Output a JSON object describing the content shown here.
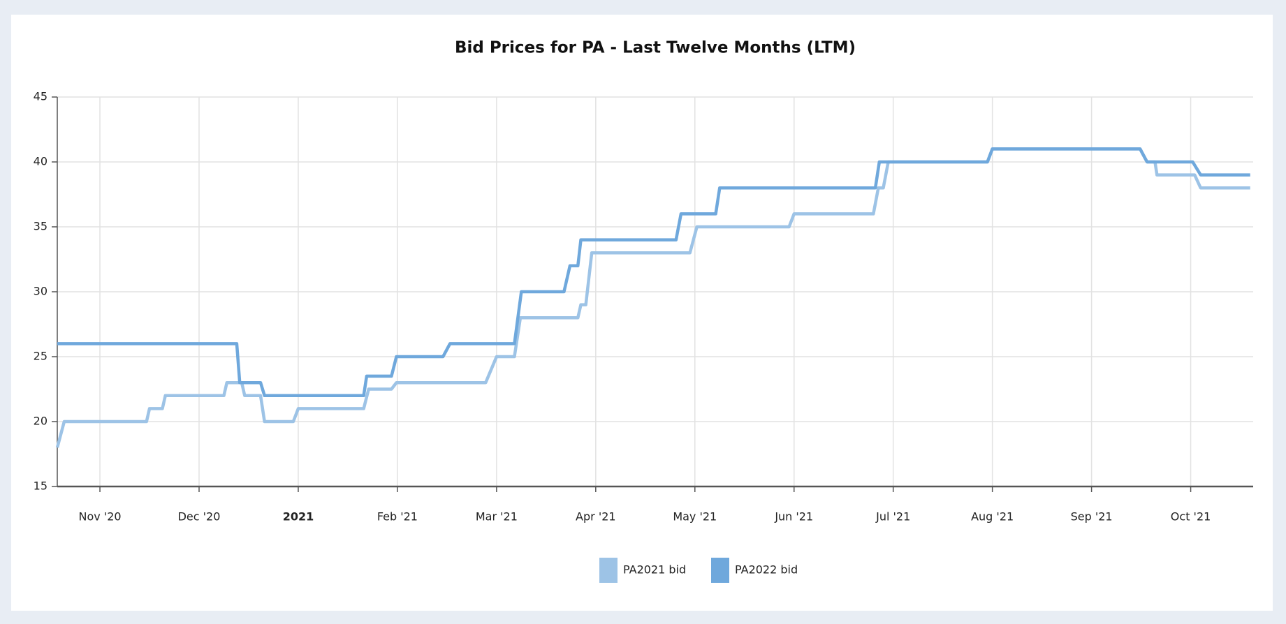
{
  "chart_data": {
    "type": "line",
    "title": "Bid Prices for PA - Last Twelve Months (LTM)",
    "xlim": [
      10.57,
      22.63
    ],
    "xticks": [
      {
        "value": 11,
        "label": "Nov '20"
      },
      {
        "value": 12,
        "label": "Dec '20"
      },
      {
        "value": 13,
        "label": "2021"
      },
      {
        "value": 14,
        "label": "Feb '21"
      },
      {
        "value": 15,
        "label": "Mar '21"
      },
      {
        "value": 16,
        "label": "Apr '21"
      },
      {
        "value": 17,
        "label": "May '21"
      },
      {
        "value": 18,
        "label": "Jun '21"
      },
      {
        "value": 19,
        "label": "Jul '21"
      },
      {
        "value": 20,
        "label": "Aug '21"
      },
      {
        "value": 21,
        "label": "Sep '21"
      },
      {
        "value": 22,
        "label": "Oct '21"
      }
    ],
    "bold_xtick_labels": [
      2
    ],
    "ylim": [
      15,
      45
    ],
    "yticks": [
      15,
      20,
      25,
      30,
      35,
      40,
      45
    ],
    "grid": true,
    "legend": "bottom",
    "series": [
      {
        "name": "PA2021 bid",
        "color": "#9dc3e6",
        "x": [
          10.57,
          10.64,
          11.47,
          11.5,
          11.63,
          11.66,
          12.25,
          12.28,
          12.43,
          12.46,
          12.62,
          12.66,
          12.95,
          13.0,
          13.66,
          13.71,
          13.94,
          13.99,
          14.89,
          15.0,
          15.18,
          15.24,
          15.82,
          15.85,
          15.9,
          15.96,
          16.95,
          17.02,
          17.95,
          18.0,
          18.8,
          18.85,
          18.9,
          18.95,
          19.95,
          20.0,
          21.49,
          21.56,
          21.64,
          21.66,
          22.04,
          22.1,
          22.6
        ],
        "values": [
          18,
          20,
          20,
          21,
          21,
          22,
          22,
          23,
          23,
          22,
          22,
          20,
          20,
          21,
          21,
          22.5,
          22.5,
          23,
          23,
          25,
          25,
          28,
          28,
          29,
          29,
          33,
          33,
          35,
          35,
          36,
          36,
          38,
          38,
          40,
          40,
          41,
          41,
          40,
          40,
          39,
          39,
          38,
          38
        ]
      },
      {
        "name": "PA2022 bid",
        "color": "#6fa8dc",
        "x": [
          10.57,
          12.38,
          12.41,
          12.62,
          12.66,
          13.66,
          13.69,
          13.94,
          13.99,
          14.46,
          14.53,
          15.18,
          15.25,
          15.68,
          15.74,
          15.82,
          15.85,
          16.81,
          16.86,
          17.21,
          17.25,
          18.82,
          18.86,
          19.95,
          20.0,
          21.49,
          21.56,
          22.02,
          22.1,
          22.6
        ],
        "values": [
          26,
          26,
          23,
          23,
          22,
          22,
          23.5,
          23.5,
          25,
          25,
          26,
          26,
          30,
          30,
          32,
          32,
          34,
          34,
          36,
          36,
          38,
          38,
          40,
          40,
          41,
          41,
          40,
          40,
          39,
          39
        ]
      }
    ]
  }
}
